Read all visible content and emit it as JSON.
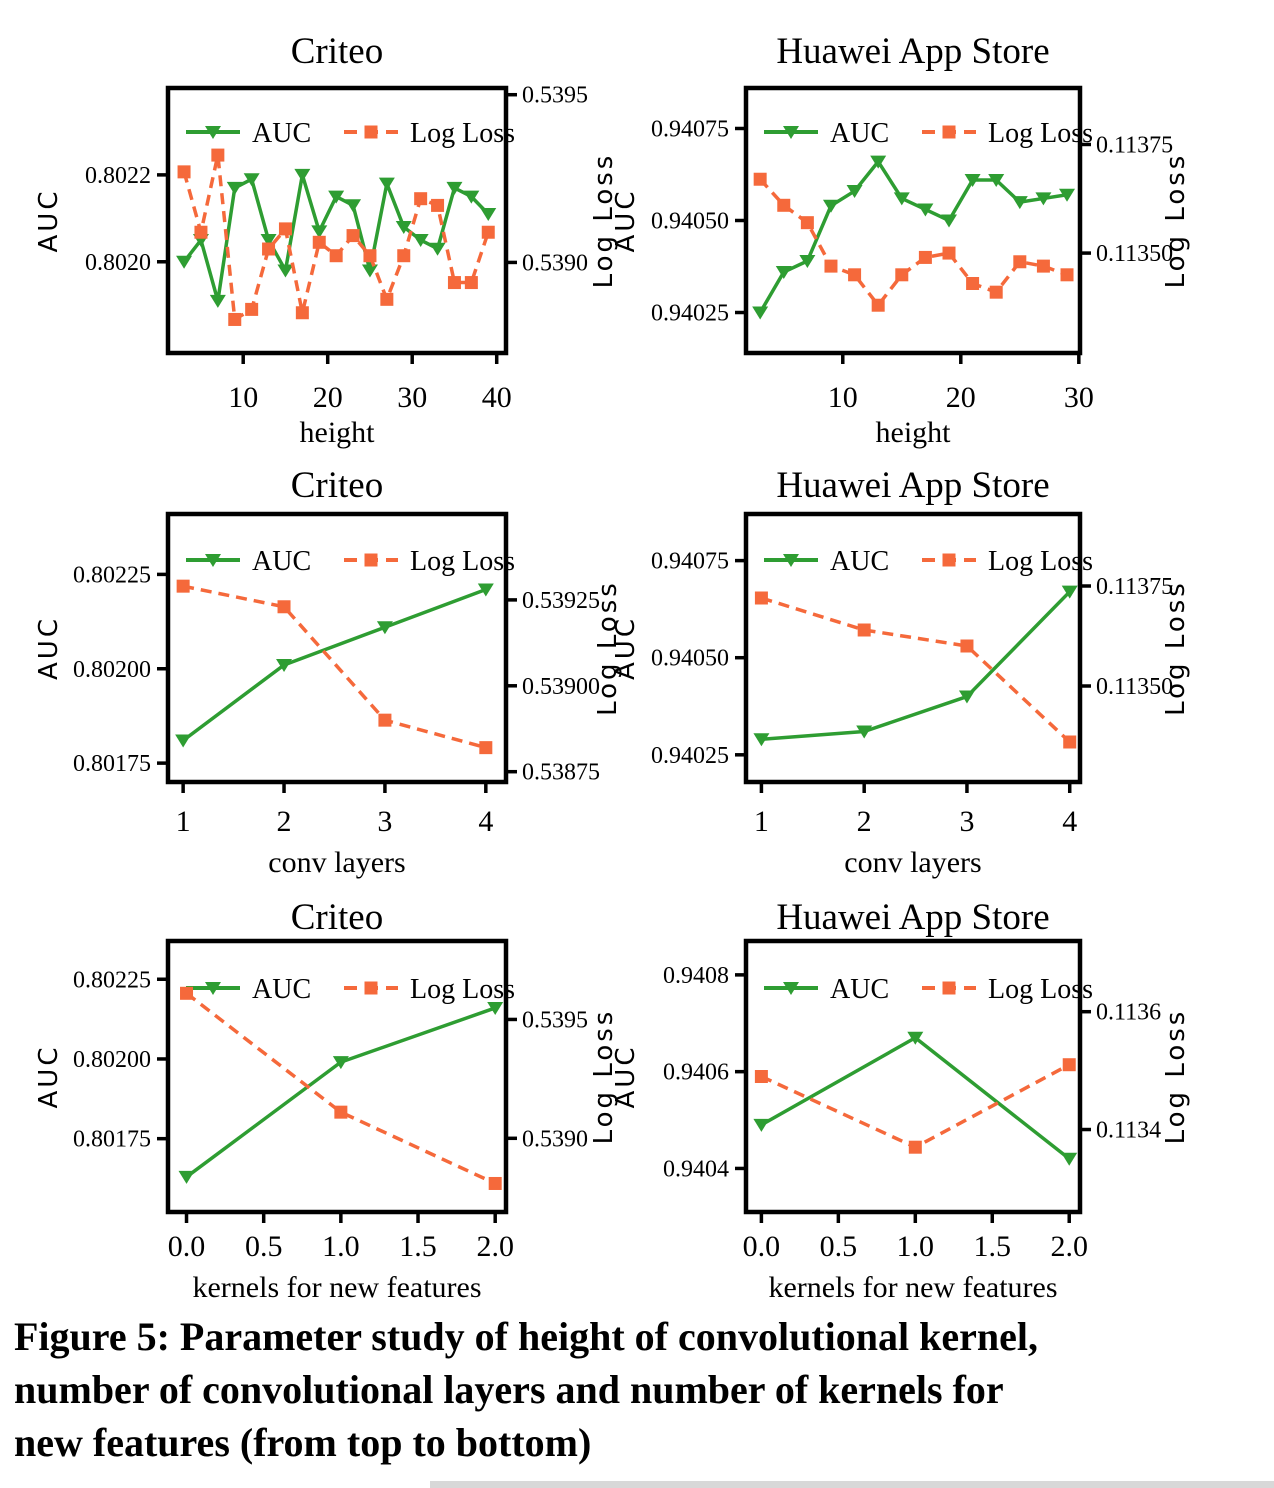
{
  "figure": {
    "caption_lines": [
      "Figure 5: Parameter study of height of convolutional kernel,",
      "number of convolutional layers and number of kernels for",
      "new features (from top to bottom)"
    ],
    "colors": {
      "auc_green": "#2e9d32",
      "log_loss_orange": "#f5693b",
      "axis_black": "#000000"
    }
  },
  "chart_data": [
    {
      "type": "line",
      "title": "Criteo",
      "xlabel": "height",
      "x_tick_labels": [
        "10",
        "20",
        "30",
        "40"
      ],
      "x_tick_values": [
        10,
        20,
        30,
        40
      ],
      "xlim": [
        1.1,
        41.1
      ],
      "left_axis": {
        "label": "AUC",
        "ticks": [
          "0.8020",
          "0.8022"
        ],
        "tick_values": [
          0.802,
          0.8022
        ],
        "lim": [
          0.80179,
          0.8024
        ]
      },
      "right_axis": {
        "label": "Log Loss",
        "ticks": [
          "0.5390",
          "0.5395"
        ],
        "tick_values": [
          0.539,
          0.5395
        ],
        "lim": [
          0.53873,
          0.53952
        ]
      },
      "legend": [
        "AUC",
        "Log Loss"
      ],
      "series": [
        {
          "name": "AUC",
          "axis": "left",
          "marker": "triangle-down",
          "line": "solid",
          "x": [
            3,
            5,
            7,
            9,
            11,
            13,
            15,
            17,
            19,
            21,
            23,
            25,
            27,
            29,
            31,
            33,
            35,
            37,
            39
          ],
          "y": [
            0.802,
            0.80205,
            0.80191,
            0.80217,
            0.80219,
            0.80205,
            0.80198,
            0.8022,
            0.80207,
            0.80215,
            0.80213,
            0.80198,
            0.80218,
            0.80208,
            0.80205,
            0.80203,
            0.80217,
            0.80215,
            0.80211
          ]
        },
        {
          "name": "Log Loss",
          "axis": "right",
          "marker": "square",
          "line": "dashed",
          "x": [
            3,
            5,
            7,
            9,
            11,
            13,
            15,
            17,
            19,
            21,
            23,
            25,
            27,
            29,
            31,
            33,
            35,
            37,
            39
          ],
          "y": [
            0.53927,
            0.53909,
            0.53932,
            0.53883,
            0.53886,
            0.53904,
            0.5391,
            0.53885,
            0.53906,
            0.53902,
            0.53908,
            0.53902,
            0.53889,
            0.53902,
            0.53919,
            0.53917,
            0.53894,
            0.53894,
            0.53909
          ]
        }
      ]
    },
    {
      "type": "line",
      "title": "Huawei App Store",
      "xlabel": "height",
      "x_tick_labels": [
        "10",
        "20",
        "30"
      ],
      "x_tick_values": [
        10,
        20,
        30
      ],
      "xlim": [
        1.8,
        30.1
      ],
      "left_axis": {
        "label": "AUC",
        "ticks": [
          "0.94025",
          "0.94050",
          "0.94075"
        ],
        "tick_values": [
          0.94025,
          0.9405,
          0.94075
        ],
        "lim": [
          0.94014,
          0.94086
        ]
      },
      "right_axis": {
        "label": "Log Loss",
        "ticks": [
          "0.11350",
          "0.11375"
        ],
        "tick_values": [
          0.1135,
          0.11375
        ],
        "lim": [
          0.11327,
          0.11388
        ]
      },
      "legend": [
        "AUC",
        "Log Loss"
      ],
      "series": [
        {
          "name": "AUC",
          "axis": "left",
          "marker": "triangle-down",
          "line": "solid",
          "x": [
            3,
            5,
            7,
            9,
            11,
            13,
            15,
            17,
            19,
            21,
            23,
            25,
            27,
            29
          ],
          "y": [
            0.94025,
            0.94036,
            0.94039,
            0.94054,
            0.94058,
            0.94066,
            0.94056,
            0.94053,
            0.9405,
            0.94061,
            0.94061,
            0.94055,
            0.94056,
            0.94057
          ]
        },
        {
          "name": "Log Loss",
          "axis": "right",
          "marker": "square",
          "line": "dashed",
          "x": [
            3,
            5,
            7,
            9,
            11,
            13,
            15,
            17,
            19,
            21,
            23,
            25,
            27,
            29
          ],
          "y": [
            0.11367,
            0.11361,
            0.11357,
            0.11347,
            0.11345,
            0.11338,
            0.11345,
            0.11349,
            0.1135,
            0.11343,
            0.11341,
            0.11348,
            0.11347,
            0.11345
          ]
        }
      ]
    },
    {
      "type": "line",
      "title": "Criteo",
      "xlabel": "conv layers",
      "x_tick_labels": [
        "1",
        "2",
        "3",
        "4"
      ],
      "x_tick_values": [
        1,
        2,
        3,
        4
      ],
      "xlim": [
        0.85,
        4.2
      ],
      "left_axis": {
        "label": "AUC",
        "ticks": [
          "0.80175",
          "0.80200",
          "0.80225"
        ],
        "tick_values": [
          0.80175,
          0.802,
          0.80225
        ],
        "lim": [
          0.8017,
          0.80241
        ]
      },
      "right_axis": {
        "label": "Log Loss",
        "ticks": [
          "0.53875",
          "0.53900",
          "0.53925"
        ],
        "tick_values": [
          0.53875,
          0.539,
          0.53925
        ],
        "lim": [
          0.53872,
          0.5395
        ]
      },
      "legend": [
        "AUC",
        "Log Loss"
      ],
      "series": [
        {
          "name": "AUC",
          "axis": "left",
          "marker": "triangle-down",
          "line": "solid",
          "x": [
            1,
            2,
            3,
            4
          ],
          "y": [
            0.80181,
            0.80201,
            0.80211,
            0.80221
          ]
        },
        {
          "name": "Log Loss",
          "axis": "right",
          "marker": "square",
          "line": "dashed",
          "x": [
            1,
            2,
            3,
            4
          ],
          "y": [
            0.53929,
            0.53923,
            0.5389,
            0.53882
          ]
        }
      ]
    },
    {
      "type": "line",
      "title": "Huawei App Store",
      "xlabel": "conv layers",
      "x_tick_labels": [
        "1",
        "2",
        "3",
        "4"
      ],
      "x_tick_values": [
        1,
        2,
        3,
        4
      ],
      "xlim": [
        0.85,
        4.1
      ],
      "left_axis": {
        "label": "AUC",
        "ticks": [
          "0.94025",
          "0.94050",
          "0.94075"
        ],
        "tick_values": [
          0.94025,
          0.9405,
          0.94075
        ],
        "lim": [
          0.94018,
          0.94087
        ]
      },
      "right_axis": {
        "label": "Log Loss",
        "ticks": [
          "0.11350",
          "0.11375"
        ],
        "tick_values": [
          0.1135,
          0.11375
        ],
        "lim": [
          0.11326,
          0.11393
        ]
      },
      "legend": [
        "AUC",
        "Log Loss"
      ],
      "series": [
        {
          "name": "AUC",
          "axis": "left",
          "marker": "triangle-down",
          "line": "solid",
          "x": [
            1,
            2,
            3,
            4
          ],
          "y": [
            0.94029,
            0.94031,
            0.9404,
            0.94067
          ]
        },
        {
          "name": "Log Loss",
          "axis": "right",
          "marker": "square",
          "line": "dashed",
          "x": [
            1,
            2,
            3,
            4
          ],
          "y": [
            0.11372,
            0.11364,
            0.1136,
            0.11336
          ]
        }
      ]
    },
    {
      "type": "line",
      "title": "Criteo",
      "xlabel": "kernels for new features",
      "x_tick_labels": [
        "0.0",
        "0.5",
        "1.0",
        "1.5",
        "2.0"
      ],
      "x_tick_values": [
        0,
        0.5,
        1,
        1.5,
        2
      ],
      "xlim": [
        -0.12,
        2.07
      ],
      "left_axis": {
        "label": "AUC",
        "ticks": [
          "0.80175",
          "0.80200",
          "0.80225"
        ],
        "tick_values": [
          0.80175,
          0.802,
          0.80225
        ],
        "lim": [
          0.80152,
          0.80237
        ]
      },
      "right_axis": {
        "label": "Log Loss",
        "ticks": [
          "0.5390",
          "0.5395"
        ],
        "tick_values": [
          0.539,
          0.5395
        ],
        "lim": [
          0.53869,
          0.53983
        ]
      },
      "legend": [
        "AUC",
        "Log Loss"
      ],
      "series": [
        {
          "name": "AUC",
          "axis": "left",
          "marker": "triangle-down",
          "line": "solid",
          "x": [
            0,
            1,
            2
          ],
          "y": [
            0.80163,
            0.80199,
            0.80216
          ]
        },
        {
          "name": "Log Loss",
          "axis": "right",
          "marker": "square",
          "line": "dashed",
          "x": [
            0,
            1,
            2
          ],
          "y": [
            0.53961,
            0.53911,
            0.53881
          ]
        }
      ]
    },
    {
      "type": "line",
      "title": "Huawei App Store",
      "xlabel": "kernels for new features",
      "x_tick_labels": [
        "0.0",
        "0.5",
        "1.0",
        "1.5",
        "2.0"
      ],
      "x_tick_values": [
        0,
        0.5,
        1,
        1.5,
        2
      ],
      "xlim": [
        -0.1,
        2.07
      ],
      "left_axis": {
        "label": "AUC",
        "ticks": [
          "0.9404",
          "0.9406",
          "0.9408"
        ],
        "tick_values": [
          0.9404,
          0.9406,
          0.9408
        ],
        "lim": [
          0.94031,
          0.94087
        ]
      },
      "right_axis": {
        "label": "Log Loss",
        "ticks": [
          "0.1134",
          "0.1136"
        ],
        "tick_values": [
          0.1134,
          0.1136
        ],
        "lim": [
          0.11326,
          0.11372
        ]
      },
      "legend": [
        "AUC",
        "Log Loss"
      ],
      "series": [
        {
          "name": "AUC",
          "axis": "left",
          "marker": "triangle-down",
          "line": "solid",
          "x": [
            0,
            1,
            2
          ],
          "y": [
            0.94049,
            0.94067,
            0.94042
          ]
        },
        {
          "name": "Log Loss",
          "axis": "right",
          "marker": "square",
          "line": "dashed",
          "x": [
            0,
            1,
            2
          ],
          "y": [
            0.11349,
            0.11337,
            0.11351
          ]
        }
      ]
    }
  ]
}
